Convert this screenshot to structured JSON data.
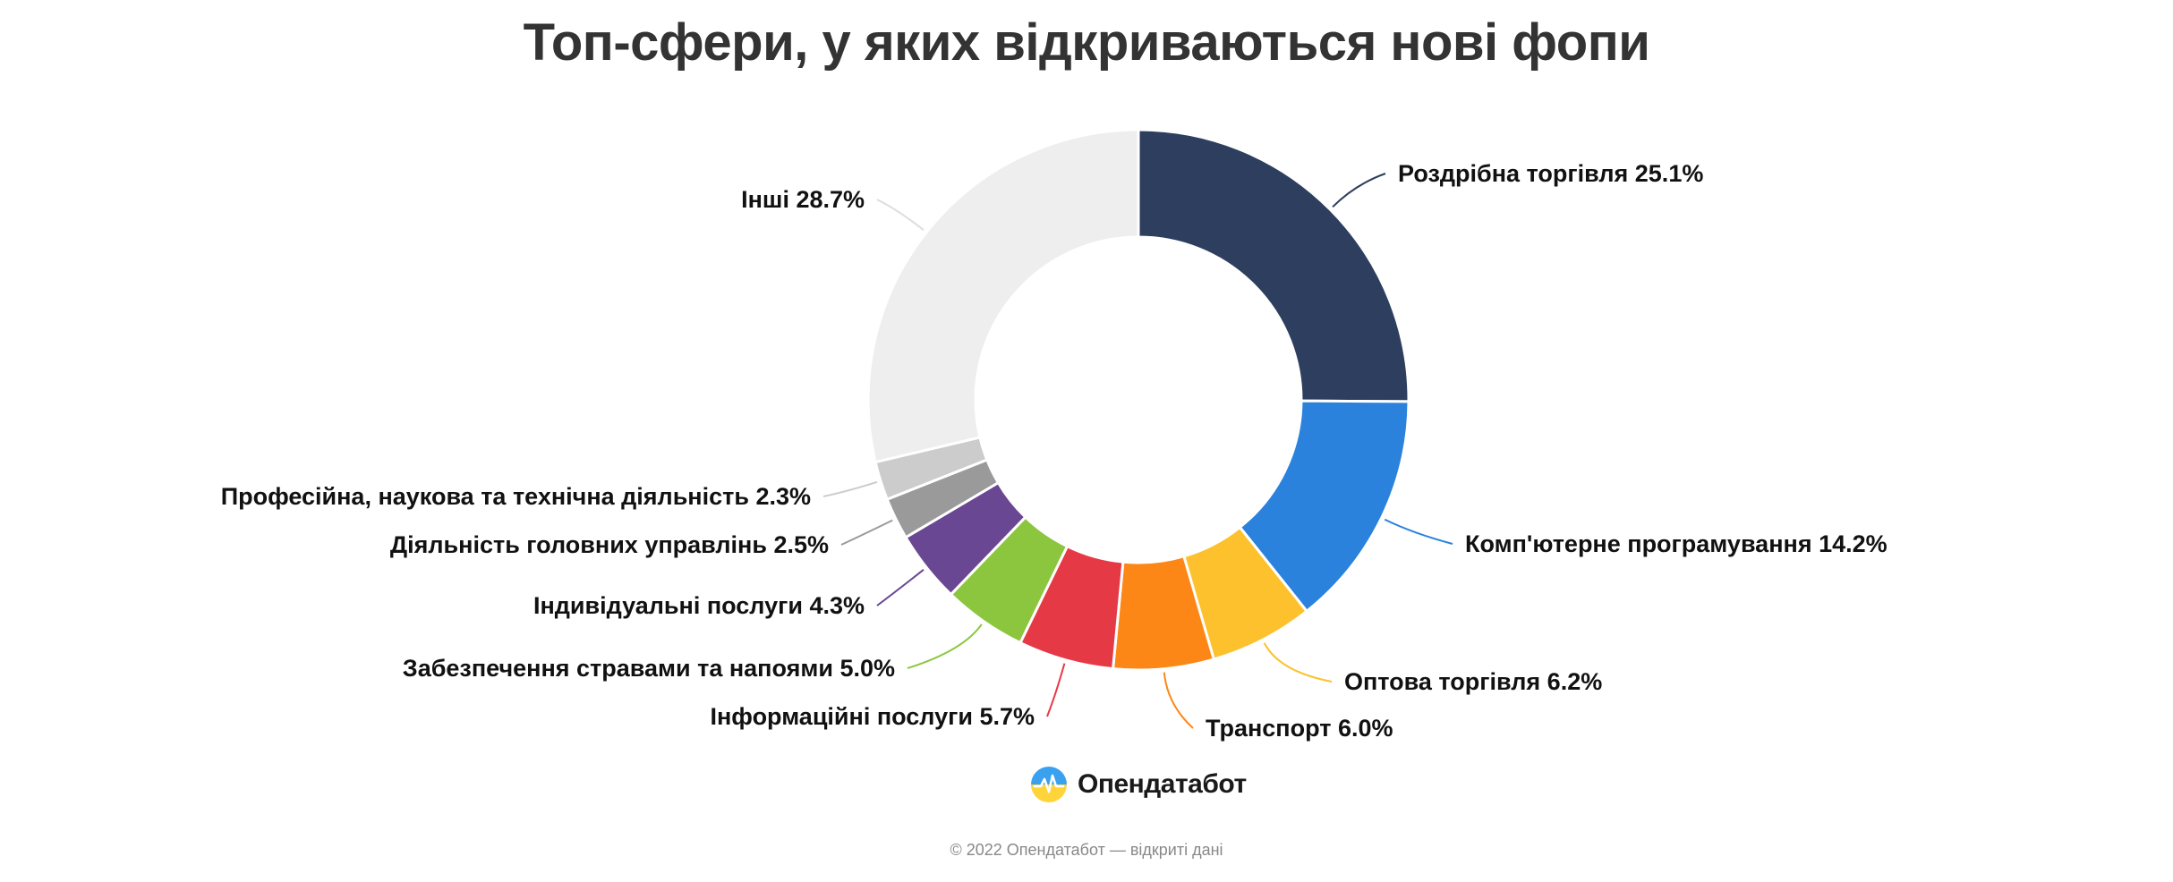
{
  "chart_data": {
    "type": "pie",
    "donut": true,
    "title": "Топ-сфери, у яких відкриваються нові фопи",
    "slices": [
      {
        "label": "Роздрібна торгівля 25.1%",
        "value": 25.1,
        "color": "#2d3e5e"
      },
      {
        "label": "Комп'ютерне програмування 14.2%",
        "value": 14.2,
        "color": "#2a82dc"
      },
      {
        "label": "Оптова торгівля 6.2%",
        "value": 6.2,
        "color": "#fdc12e"
      },
      {
        "label": "Транспорт 6.0%",
        "value": 6.0,
        "color": "#fd8716"
      },
      {
        "label": "Інформаційні послуги 5.7%",
        "value": 5.7,
        "color": "#e63946"
      },
      {
        "label": "Забезпечення стравами та напоями 5.0%",
        "value": 5.0,
        "color": "#8cc63e"
      },
      {
        "label": "Індивідуальні послуги 4.3%",
        "value": 4.3,
        "color": "#6a4793"
      },
      {
        "label": "Діяльність головних управлінь 2.5%",
        "value": 2.5,
        "color": "#9a9a9a"
      },
      {
        "label": "Професійна, наукова та технічна діяльність 2.3%",
        "value": 2.3,
        "color": "#cccccc"
      },
      {
        "label": "Інші 28.7%",
        "value": 28.7,
        "color": "#eeeeee"
      }
    ]
  },
  "brand": {
    "name": "Опендатабот"
  },
  "footer": {
    "copyright": "© 2022 Опендатабот — відкриті дані"
  }
}
